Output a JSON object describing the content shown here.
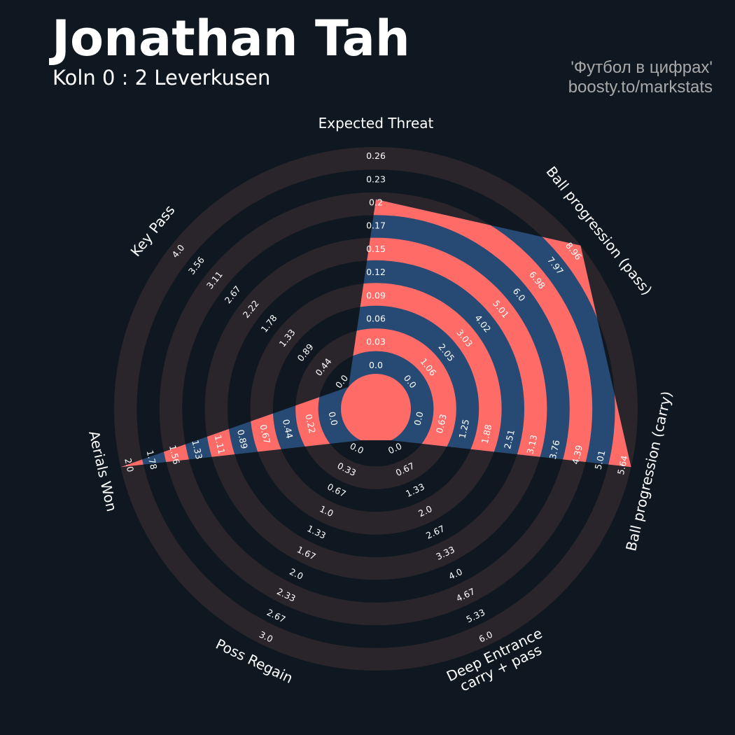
{
  "header": {
    "title": "Jonathan Tah",
    "subtitle": "Koln 0 : 2 Leverkusen",
    "credit_line1": "'Футбол в цифрах'",
    "credit_line2": "boosty.to/markstats"
  },
  "colors": {
    "background": "#0f1820",
    "ring": "#2a252b",
    "fill": "#264a74",
    "band": "#ff6b67"
  },
  "chart_data": {
    "type": "radar",
    "rings": 5,
    "params": [
      {
        "label_lines": [
          "Expected Threat"
        ],
        "value": 0.2,
        "ticks": [
          "0.0",
          "0.03",
          "0.06",
          "0.09",
          "0.12",
          "0.15",
          "0.17",
          "0.2",
          "0.23",
          "0.26"
        ]
      },
      {
        "label_lines": [
          "Ball progression (pass)"
        ],
        "value": 8.96,
        "ticks": [
          "0.0",
          "1.06",
          "2.05",
          "3.03",
          "4.02",
          "5.01",
          "6.0",
          "6.98",
          "7.97",
          "8.96"
        ]
      },
      {
        "label_lines": [
          "Ball progression (carry)"
        ],
        "value": 5.64,
        "ticks": [
          "0.0",
          "0.63",
          "1.25",
          "1.88",
          "2.51",
          "3.13",
          "3.76",
          "4.39",
          "5.01",
          "5.64"
        ]
      },
      {
        "label_lines": [
          "Deep Entrance",
          "carry + pass"
        ],
        "value": 0.0,
        "ticks": [
          "0.0",
          "0.67",
          "1.33",
          "2.0",
          "2.67",
          "3.33",
          "4.0",
          "4.67",
          "5.33",
          "6.0"
        ]
      },
      {
        "label_lines": [
          "Poss Regain"
        ],
        "value": 0.0,
        "ticks": [
          "0.0",
          "0.33",
          "0.67",
          "1.0",
          "1.33",
          "1.67",
          "2.0",
          "2.33",
          "2.67",
          "3.0"
        ]
      },
      {
        "label_lines": [
          "Aerials Won"
        ],
        "value": 2.0,
        "ticks": [
          "0.0",
          "0.22",
          "0.44",
          "0.67",
          "0.89",
          "1.11",
          "1.33",
          "1.56",
          "1.78",
          "2.0"
        ]
      },
      {
        "label_lines": [
          "Key Pass"
        ],
        "value": 0.0,
        "ticks": [
          "0.0",
          "0.44",
          "0.89",
          "1.33",
          "1.78",
          "2.22",
          "2.67",
          "3.11",
          "3.56",
          "4.0"
        ]
      }
    ]
  }
}
